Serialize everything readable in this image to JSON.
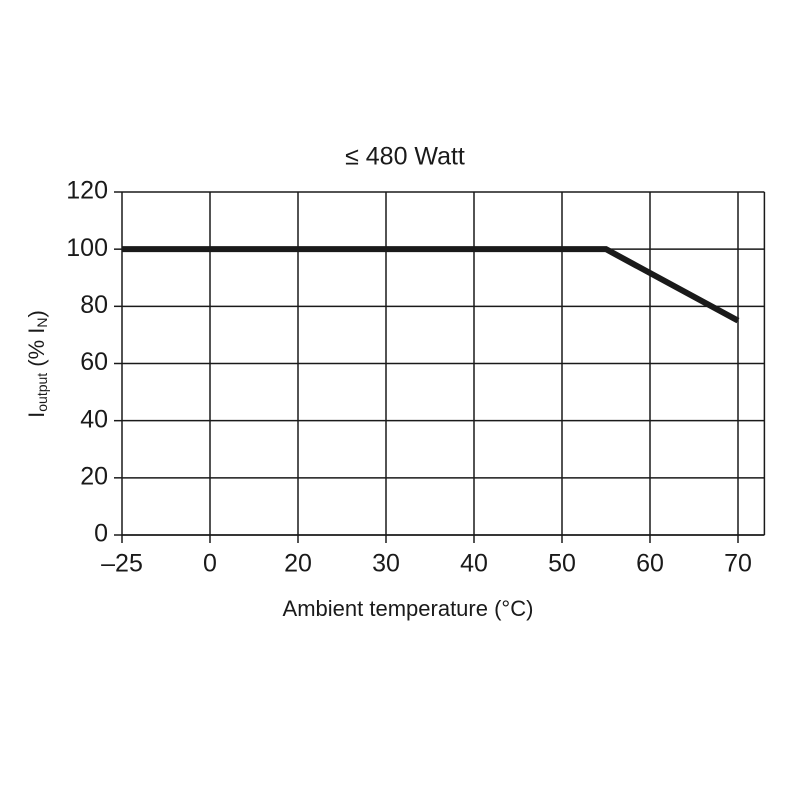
{
  "chart_data": {
    "type": "line",
    "title": "≤ 480 Watt",
    "xlabel": "Ambient temperature (°C)",
    "ylabel": [
      {
        "text": "I",
        "sub": false
      },
      {
        "text": "output",
        "sub": true
      },
      {
        "text": " (% I",
        "sub": false
      },
      {
        "text": "N",
        "sub": true
      },
      {
        "text": ")",
        "sub": false
      }
    ],
    "x": [
      -25,
      55,
      70
    ],
    "series": [
      {
        "values": [
          100,
          100,
          75
        ],
        "color": "#1a1a1a"
      }
    ],
    "xlim": [
      -25,
      73
    ],
    "xticks": [
      {
        "value": -25,
        "label": "–25"
      },
      0,
      20,
      30,
      40,
      50,
      60,
      70
    ],
    "ylim": [
      0,
      120
    ],
    "yticks": [
      0,
      20,
      40,
      60,
      80,
      100,
      120
    ],
    "grid": true
  }
}
